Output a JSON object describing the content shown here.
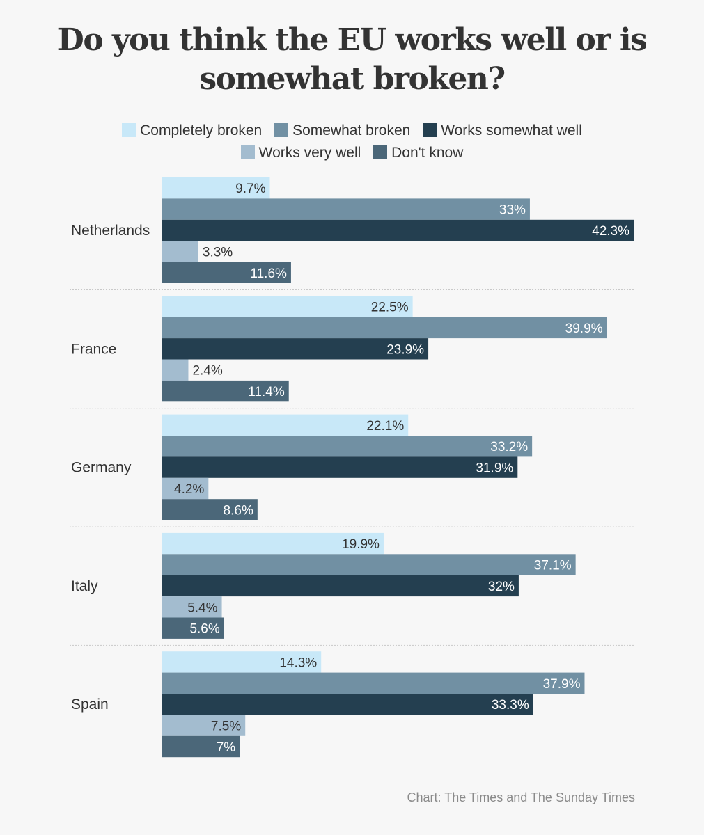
{
  "chart_data": {
    "type": "bar",
    "orientation": "horizontal",
    "title": "Do you think the EU works well or is somewhat broken?",
    "categories": [
      "Netherlands",
      "France",
      "Germany",
      "Italy",
      "Spain"
    ],
    "series": [
      {
        "name": "Completely broken",
        "color": "#c8e8f8",
        "label_color": "#333333",
        "values": [
          9.7,
          22.5,
          22.1,
          19.9,
          14.3
        ],
        "labels": [
          "9.7%",
          "22.5%",
          "22.1%",
          "19.9%",
          "14.3%"
        ]
      },
      {
        "name": "Somewhat broken",
        "color": "#7190a3",
        "label_color": "#ffffff",
        "values": [
          33,
          39.9,
          33.2,
          37.1,
          37.9
        ],
        "labels": [
          "33%",
          "39.9%",
          "33.2%",
          "37.1%",
          "37.9%"
        ]
      },
      {
        "name": "Works somewhat well",
        "color": "#243f50",
        "label_color": "#ffffff",
        "values": [
          42.3,
          23.9,
          31.9,
          32,
          33.3
        ],
        "labels": [
          "42.3%",
          "23.9%",
          "31.9%",
          "32%",
          "33.3%"
        ]
      },
      {
        "name": "Works very well",
        "color": "#a3bccf",
        "label_color": "#333333",
        "values": [
          3.3,
          2.4,
          4.2,
          5.4,
          7.5
        ],
        "labels": [
          "3.3%",
          "2.4%",
          "4.2%",
          "5.4%",
          "7.5%"
        ]
      },
      {
        "name": "Don't know",
        "color": "#4b6779",
        "label_color": "#ffffff",
        "values": [
          11.6,
          11.4,
          8.6,
          5.6,
          7
        ],
        "labels": [
          "11.6%",
          "11.4%",
          "8.6%",
          "5.6%",
          "7%"
        ]
      }
    ],
    "xlim": [
      0,
      42.3
    ],
    "grid": false,
    "legend_position": "top",
    "source": "Chart: The Times and The Sunday Times"
  }
}
